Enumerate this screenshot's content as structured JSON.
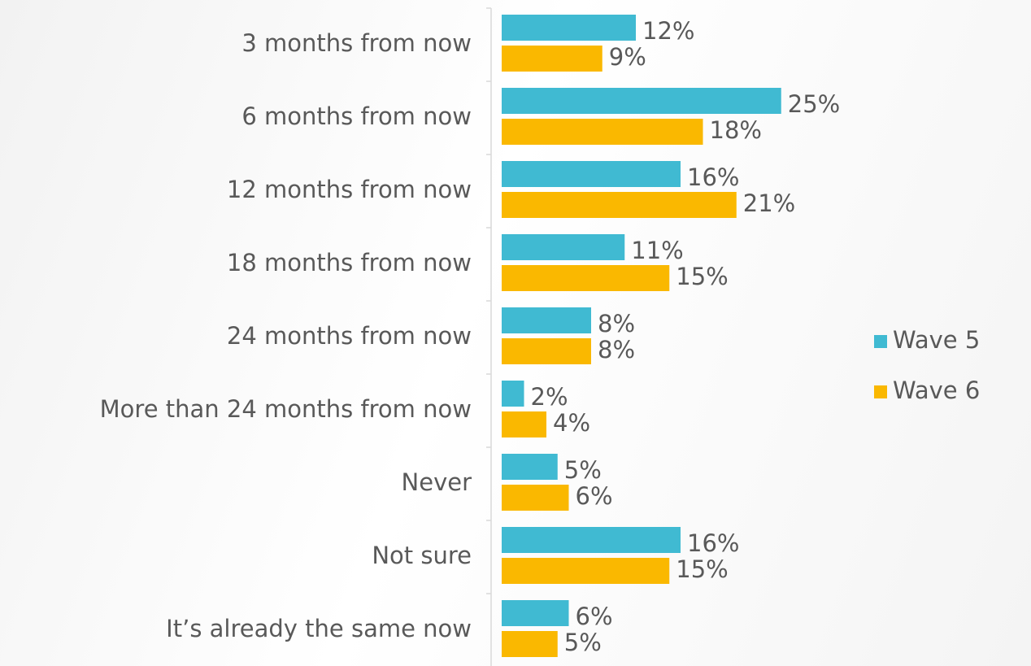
{
  "chart_data": {
    "type": "bar",
    "orientation": "horizontal",
    "categories": [
      "3 months from now",
      "6 months from now",
      "12 months from now",
      "18 months from now",
      "24 months from now",
      "More than 24 months from now",
      "Never",
      "Not sure",
      "It’s already the same now"
    ],
    "series": [
      {
        "name": "Wave 5",
        "color": "#40bad2",
        "values": [
          12,
          25,
          16,
          11,
          8,
          2,
          5,
          16,
          6
        ],
        "value_labels": [
          "12%",
          "25%",
          "16%",
          "11%",
          "8%",
          "2%",
          "5%",
          "16%",
          "6%"
        ]
      },
      {
        "name": "Wave 6",
        "color": "#fab800",
        "values": [
          9,
          18,
          21,
          15,
          8,
          4,
          6,
          15,
          5
        ],
        "value_labels": [
          "9%",
          "18%",
          "21%",
          "15%",
          "8%",
          "4%",
          "6%",
          "15%",
          "5%"
        ]
      }
    ],
    "legend": "right"
  }
}
